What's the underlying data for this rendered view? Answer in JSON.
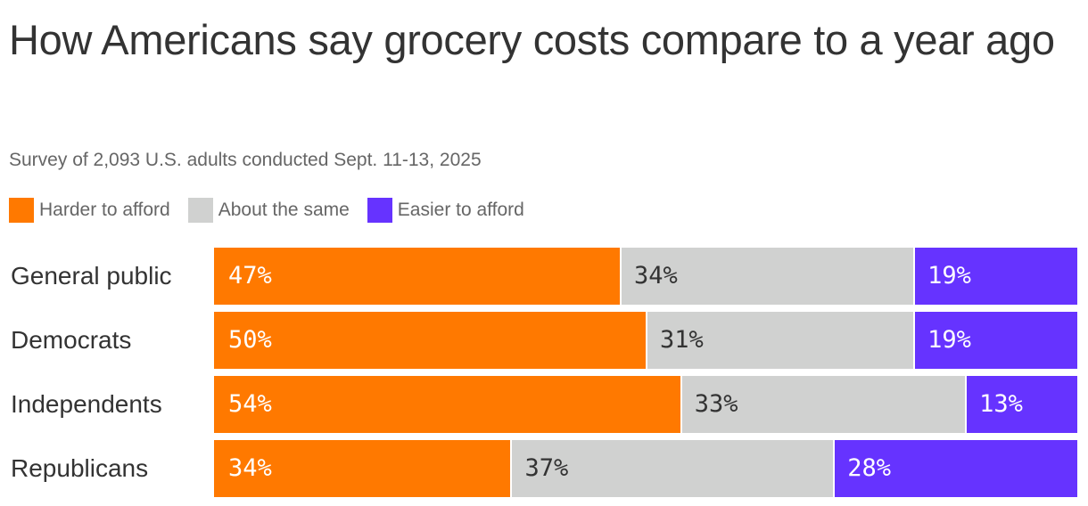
{
  "chart_data": {
    "type": "bar",
    "orientation": "horizontal",
    "stacked": true,
    "title": "How Americans say grocery costs compare to a year ago",
    "subtitle": "Survey of 2,093 U.S. adults conducted Sept. 11-13, 2025",
    "legend_placement": "top-left",
    "categories": [
      "General public",
      "Democrats",
      "Independents",
      "Republicans"
    ],
    "series": [
      {
        "name": "Harder to afford",
        "color": "#ff7900",
        "label_color": "#ffffff",
        "values": [
          47,
          50,
          54,
          34
        ]
      },
      {
        "name": "About the same",
        "color": "#d0d1d0",
        "label_color": "#333333",
        "values": [
          34,
          31,
          33,
          37
        ]
      },
      {
        "name": "Easier to afford",
        "color": "#6633ff",
        "label_color": "#ffffff",
        "values": [
          19,
          19,
          13,
          28
        ]
      }
    ],
    "value_suffix": "%",
    "grid": false
  }
}
